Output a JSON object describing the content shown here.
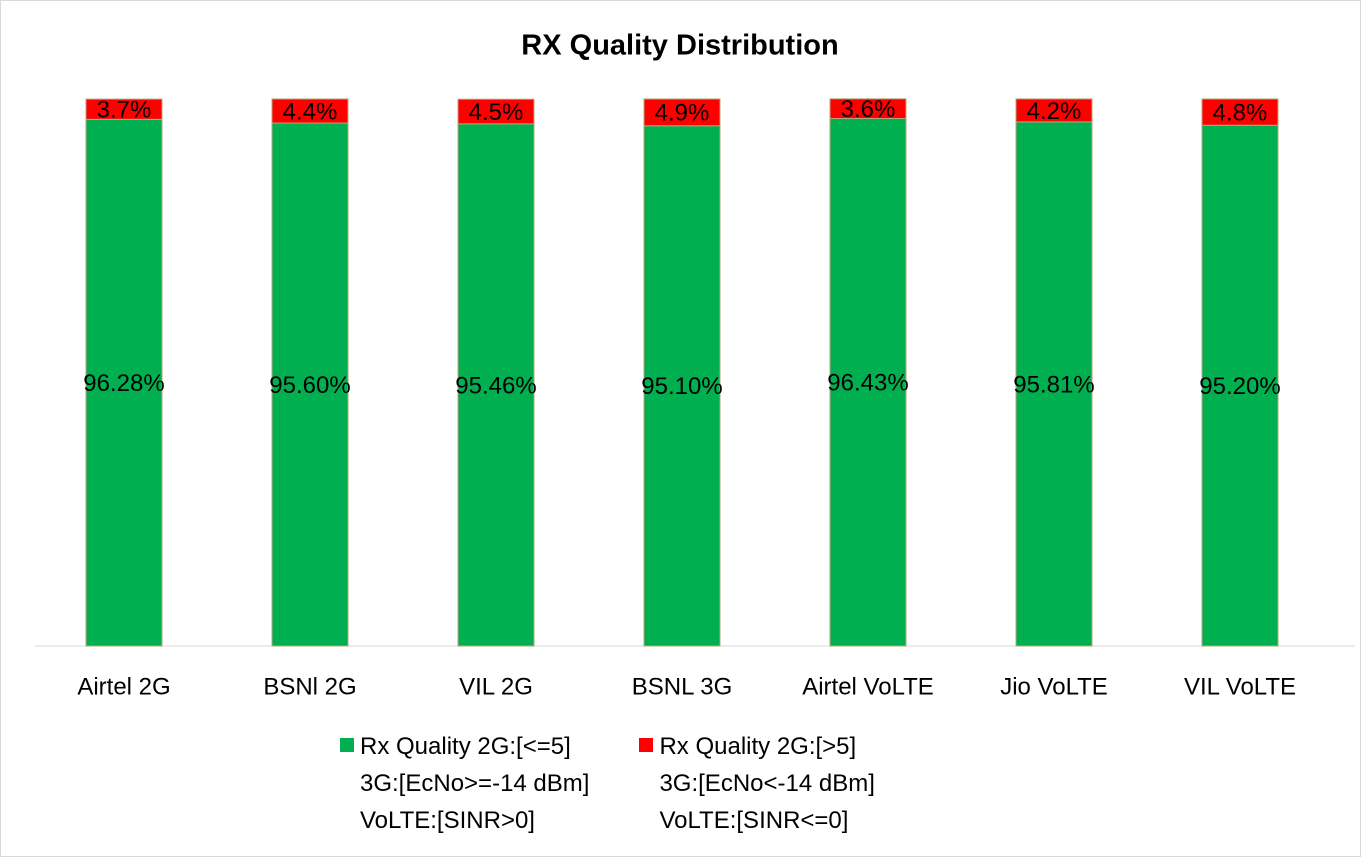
{
  "chart_data": {
    "type": "stacked_bar",
    "title": "RX Quality Distribution",
    "categories": [
      "Airtel 2G",
      "BSNl 2G",
      "VIL 2G",
      "BSNL 3G",
      "Airtel VoLTE",
      "Jio VoLTE",
      "VIL VoLTE"
    ],
    "series": [
      {
        "name": "Rx Quality 2G:[<=5]\n3G:[EcNo>=-14 dBm]\nVoLTE:[SINR>0]",
        "color": "#00b050",
        "values": [
          96.28,
          95.6,
          95.46,
          95.1,
          96.43,
          95.81,
          95.2
        ],
        "value_labels": [
          "96.28%",
          "95.60%",
          "95.46%",
          "95.10%",
          "96.43%",
          "95.81%",
          "95.20%"
        ]
      },
      {
        "name": "Rx Quality 2G:[>5]\n3G:[EcNo<-14 dBm]\nVoLTE:[SINR<=0]",
        "color": "#ff0000",
        "values": [
          3.7,
          4.4,
          4.5,
          4.9,
          3.6,
          4.2,
          4.8
        ],
        "value_labels": [
          "3.7%",
          "4.4%",
          "4.5%",
          "4.9%",
          "3.6%",
          "4.2%",
          "4.8%"
        ]
      }
    ],
    "ylim": [
      0,
      100
    ]
  }
}
